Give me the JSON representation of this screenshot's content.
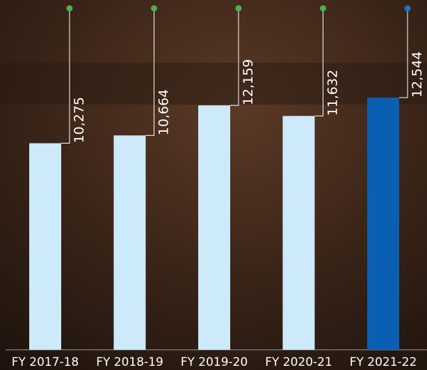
{
  "chart_data": {
    "type": "bar",
    "categories": [
      "FY 2017-18",
      "FY 2018-19",
      "FY 2019-20",
      "FY 2020-21",
      "FY 2021-22"
    ],
    "values": [
      10275,
      10664,
      12159,
      11632,
      12544
    ],
    "value_labels": [
      "10,275",
      "10,664",
      "12,159",
      "11,632",
      "12,544"
    ],
    "colors": [
      "#cdeafa",
      "#cdeafa",
      "#cdeafa",
      "#cdeafa",
      "#0b5fb3"
    ],
    "marker_colors": [
      "#4caf50",
      "#4caf50",
      "#4caf50",
      "#4caf50",
      "#1c73c9"
    ],
    "ylim": [
      0,
      17400
    ]
  }
}
